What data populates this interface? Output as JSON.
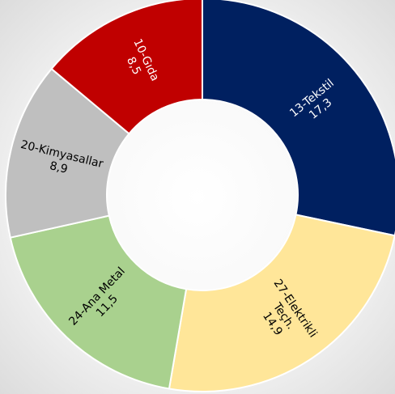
{
  "chart_data": {
    "type": "pie",
    "variant": "donut",
    "title": "",
    "legend": "none",
    "slices": [
      {
        "name": "13-Tekstil",
        "value_label": "17,3",
        "value": 17.3,
        "color": "#002060",
        "text_color": "#ffffff"
      },
      {
        "name": "27-Elektrikli Teçh.",
        "lines": [
          "27-Elektrikli",
          "Teçh."
        ],
        "value_label": "14,9",
        "value": 14.9,
        "color": "#FFE699",
        "text_color": "#000000"
      },
      {
        "name": "24-Ana Metal",
        "value_label": "11,5",
        "value": 11.5,
        "color": "#A9D18E",
        "text_color": "#000000"
      },
      {
        "name": "20-Kimyasallar",
        "value_label": "8,9",
        "value": 8.9,
        "color": "#BFBFBF",
        "text_color": "#000000"
      },
      {
        "name": "10-Gıda",
        "value_label": "8,5",
        "value": 8.5,
        "color": "#C00000",
        "text_color": "#ffffff"
      }
    ]
  }
}
